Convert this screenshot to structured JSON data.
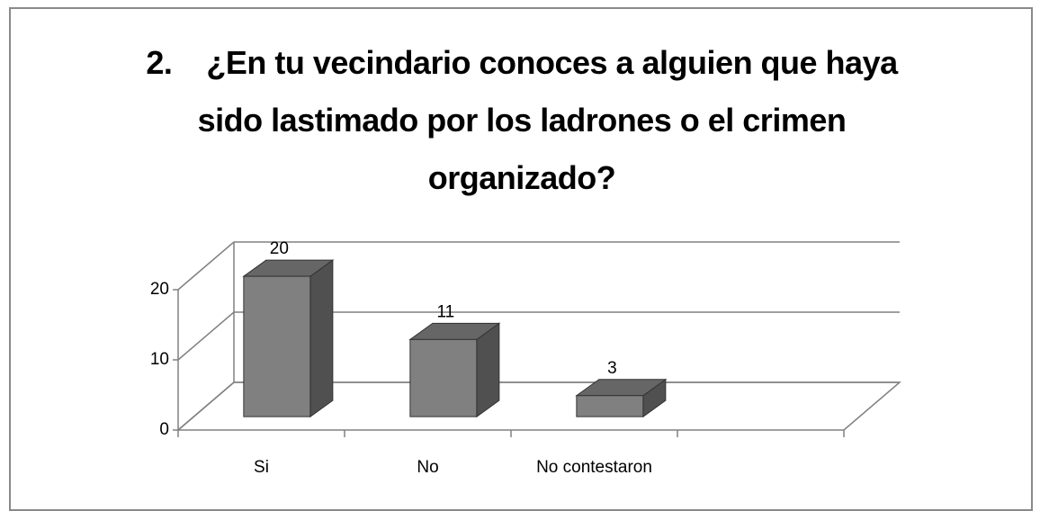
{
  "chart_data": {
    "type": "bar3d",
    "title": "2.    ¿En tu vecindario conoces a alguien que haya sido lastimado por los ladrones o el crimen organizado?",
    "categories": [
      "Si",
      "No",
      "No contestaron"
    ],
    "values": [
      20,
      11,
      3
    ],
    "color": "#808080",
    "ylim": [
      0,
      20
    ],
    "yticks": [
      0,
      10,
      20
    ],
    "grid": true
  }
}
